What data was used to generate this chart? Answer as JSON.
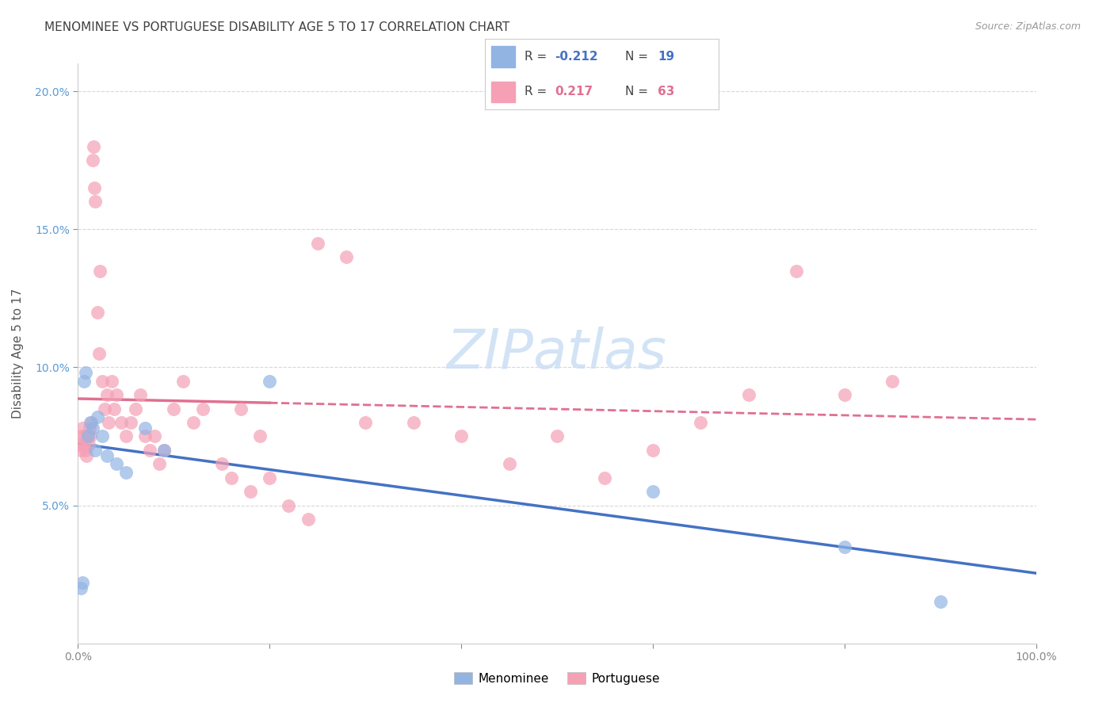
{
  "title": "MENOMINEE VS PORTUGUESE DISABILITY AGE 5 TO 17 CORRELATION CHART",
  "source": "Source: ZipAtlas.com",
  "ylabel": "Disability Age 5 to 17",
  "xlim": [
    0,
    100
  ],
  "ylim": [
    0,
    21
  ],
  "ytick_vals": [
    5,
    10,
    15,
    20
  ],
  "ytick_labels": [
    "5.0%",
    "10.0%",
    "15.0%",
    "20.0%"
  ],
  "xtick_vals": [
    0,
    20,
    40,
    60,
    80,
    100
  ],
  "xtick_labels": [
    "0.0%",
    "",
    "",
    "",
    "",
    "100.0%"
  ],
  "menominee_color": "#92b4e3",
  "menominee_line_color": "#4472c4",
  "portuguese_color": "#f5a0b5",
  "portuguese_line_color": "#e07090",
  "menominee_R": -0.212,
  "menominee_N": 19,
  "portuguese_R": 0.217,
  "portuguese_N": 63,
  "watermark": "ZIPatlas",
  "watermark_color": "#ccdff5",
  "background_color": "#ffffff",
  "grid_color": "#d8d8d8",
  "ytick_color": "#5b9bd5",
  "axis_color": "#cccccc",
  "title_color": "#404040",
  "source_color": "#999999",
  "legend_border_color": "#cccccc",
  "menominee_x": [
    0.3,
    0.5,
    0.6,
    0.8,
    1.0,
    1.3,
    1.5,
    1.8,
    2.0,
    2.5,
    3.0,
    4.0,
    5.0,
    7.0,
    9.0,
    20.0,
    60.0,
    80.0,
    90.0
  ],
  "menominee_y": [
    2.0,
    2.2,
    9.5,
    9.8,
    7.5,
    8.0,
    7.8,
    7.0,
    8.2,
    7.5,
    6.8,
    6.5,
    6.2,
    7.8,
    7.0,
    9.5,
    5.5,
    3.5,
    1.5
  ],
  "portuguese_x": [
    0.2,
    0.3,
    0.4,
    0.5,
    0.6,
    0.7,
    0.8,
    0.9,
    1.0,
    1.1,
    1.2,
    1.3,
    1.4,
    1.5,
    1.6,
    1.7,
    1.8,
    2.0,
    2.2,
    2.3,
    2.5,
    2.8,
    3.0,
    3.2,
    3.5,
    3.8,
    4.0,
    4.5,
    5.0,
    5.5,
    6.0,
    6.5,
    7.0,
    7.5,
    8.0,
    8.5,
    9.0,
    10.0,
    11.0,
    12.0,
    13.0,
    15.0,
    16.0,
    17.0,
    18.0,
    19.0,
    20.0,
    22.0,
    24.0,
    25.0,
    28.0,
    30.0,
    35.0,
    40.0,
    45.0,
    50.0,
    55.0,
    60.0,
    65.0,
    70.0,
    75.0,
    80.0,
    85.0
  ],
  "portuguese_y": [
    7.2,
    7.0,
    7.5,
    7.8,
    7.2,
    7.5,
    7.0,
    6.8,
    7.5,
    7.2,
    7.8,
    7.5,
    8.0,
    17.5,
    18.0,
    16.5,
    16.0,
    12.0,
    10.5,
    13.5,
    9.5,
    8.5,
    9.0,
    8.0,
    9.5,
    8.5,
    9.0,
    8.0,
    7.5,
    8.0,
    8.5,
    9.0,
    7.5,
    7.0,
    7.5,
    6.5,
    7.0,
    8.5,
    9.5,
    8.0,
    8.5,
    6.5,
    6.0,
    8.5,
    5.5,
    7.5,
    6.0,
    5.0,
    4.5,
    14.5,
    14.0,
    8.0,
    8.0,
    7.5,
    6.5,
    7.5,
    6.0,
    7.0,
    8.0,
    9.0,
    13.5,
    9.0,
    9.5
  ],
  "por_trend_solid_end": 20,
  "por_trend_dashed_start": 20
}
